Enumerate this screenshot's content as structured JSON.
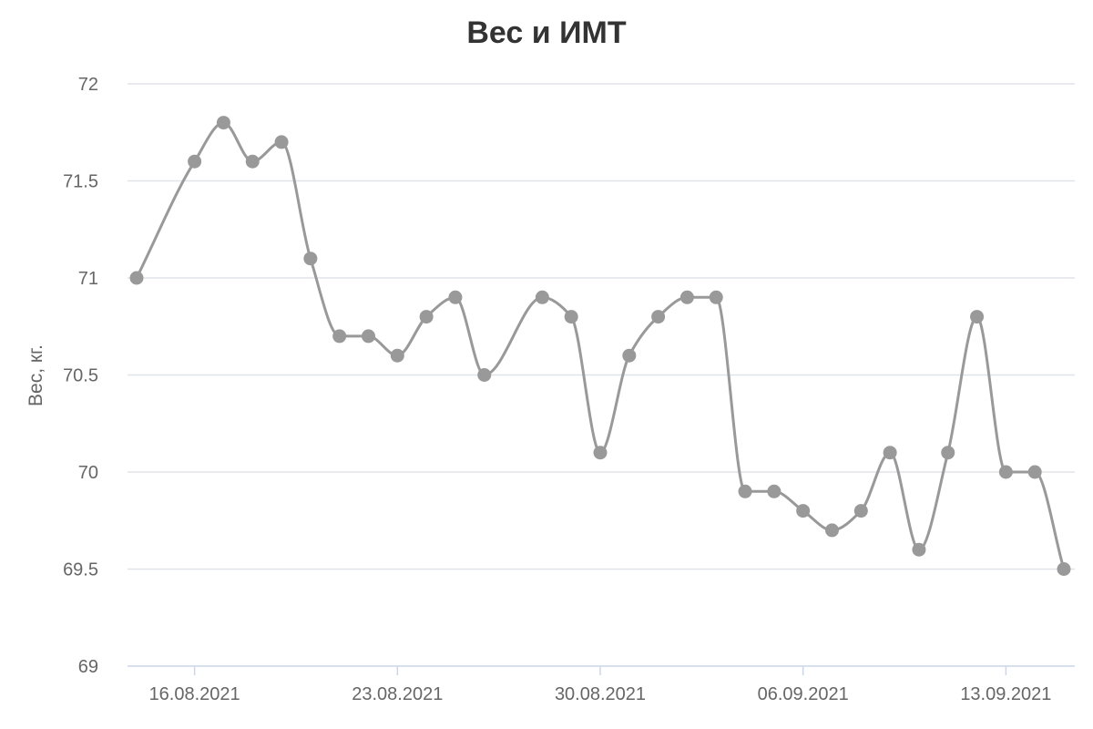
{
  "chart_data": {
    "type": "line",
    "title": "Вес и ИМТ",
    "ylabel": "Вес, кг.",
    "xlabel": "",
    "ylim": [
      69,
      72
    ],
    "y_ticks": [
      69,
      69.5,
      70,
      70.5,
      71,
      71.5,
      72
    ],
    "x_tick_labels": [
      "16.08.2021",
      "23.08.2021",
      "30.08.2021",
      "06.09.2021",
      "13.09.2021"
    ],
    "grid": true,
    "legend": false,
    "line_color": "#999999",
    "smooth": true,
    "series": [
      {
        "x": [
          "14.08.2021",
          "16.08.2021",
          "17.08.2021",
          "18.08.2021",
          "19.08.2021",
          "20.08.2021",
          "21.08.2021",
          "22.08.2021",
          "23.08.2021",
          "24.08.2021",
          "25.08.2021",
          "26.08.2021",
          "28.08.2021",
          "29.08.2021",
          "30.08.2021",
          "31.08.2021",
          "01.09.2021",
          "02.09.2021",
          "03.09.2021",
          "04.09.2021",
          "05.09.2021",
          "06.09.2021",
          "07.09.2021",
          "08.09.2021",
          "09.09.2021",
          "10.09.2021",
          "11.09.2021",
          "12.09.2021",
          "13.09.2021",
          "14.09.2021",
          "15.09.2021"
        ],
        "values": [
          71.0,
          71.6,
          71.8,
          71.6,
          71.7,
          71.1,
          70.7,
          70.7,
          70.6,
          70.8,
          70.9,
          70.5,
          70.9,
          70.8,
          70.1,
          70.6,
          70.8,
          70.9,
          70.9,
          69.9,
          69.9,
          69.8,
          69.7,
          69.8,
          70.1,
          69.6,
          70.1,
          70.8,
          70.0,
          70.0,
          69.5
        ]
      }
    ]
  }
}
